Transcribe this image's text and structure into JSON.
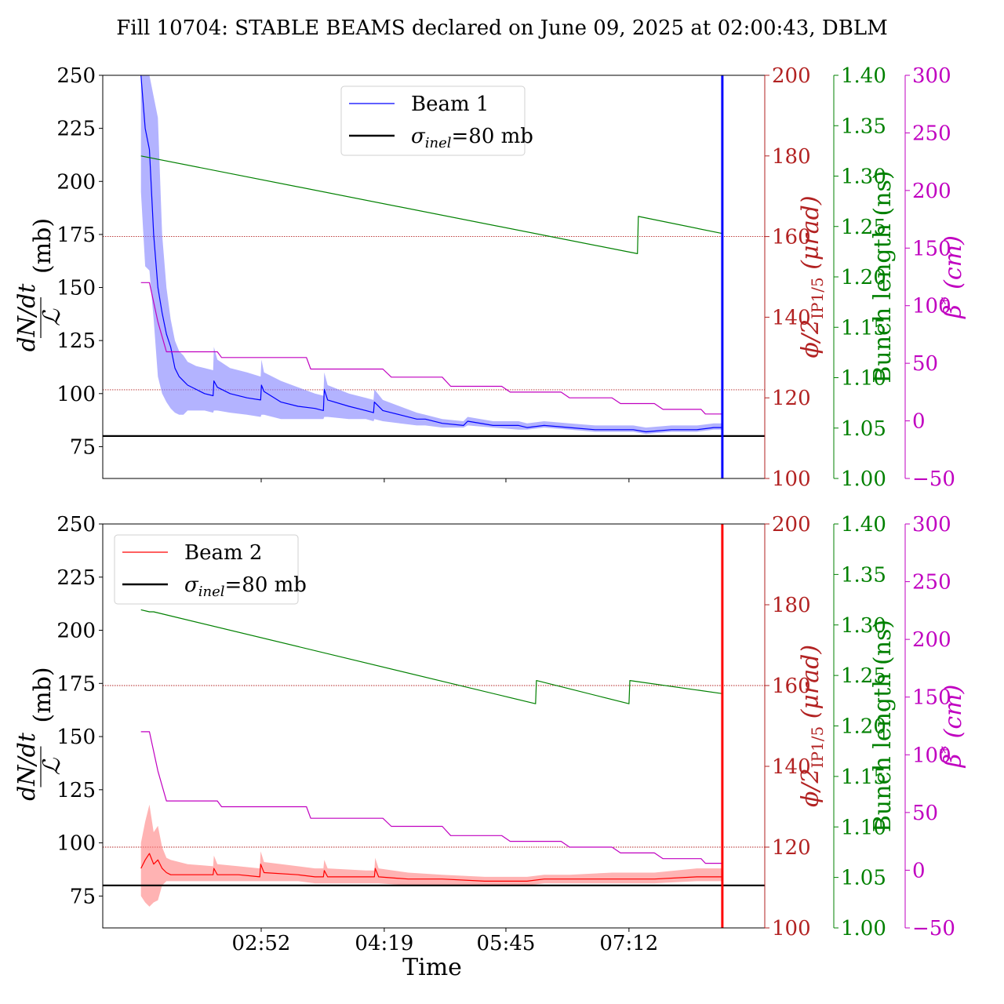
{
  "chart_data": [
    {
      "type": "line",
      "panel": "top",
      "title": "Fill 10704: STABLE BEAMS declared on June 09, 2025 at 02:00:43, DBLM",
      "ylabel": "dN/dt / ℒ (mb)",
      "ylabel_num": "dN/dt",
      "ylabel_den": "ℒ",
      "ylabel_unit": "(mb)",
      "ylim": [
        60,
        250
      ],
      "yticks": [
        75,
        100,
        125,
        150,
        175,
        200,
        225,
        250
      ],
      "xlim_hours": [
        1.0,
        8.8
      ],
      "xticks": [
        2.8667,
        4.3167,
        5.75,
        7.2
      ],
      "xticklabels": [],
      "right_axes": [
        {
          "name": "crossing",
          "label": "ϕ/2IP1/5 (μrad)",
          "label_main": "ϕ/2",
          "label_sub": "IP1/5",
          "label_unit": " (μrad)",
          "color": "#b22222",
          "ylim": [
            100,
            200
          ],
          "ticks": [
            100,
            120,
            140,
            160,
            180,
            200
          ]
        },
        {
          "name": "bunch_length",
          "label": "Bunch length (ns)",
          "color": "#008000",
          "ylim": [
            1.0,
            1.4
          ],
          "ticks": [
            "1.00",
            "1.05",
            "1.10",
            "1.15",
            "1.20",
            "1.25",
            "1.30",
            "1.35",
            "1.40"
          ]
        },
        {
          "name": "beta_star",
          "label": "β* (cm)",
          "label_main": "β",
          "label_sup": "*",
          "label_unit": " (cm)",
          "color": "#c000c0",
          "ylim": [
            -50,
            300
          ],
          "ticks": [
            "−50",
            "0",
            "50",
            "100",
            "150",
            "200",
            "250",
            "300"
          ]
        }
      ],
      "legend": {
        "placement": "upper-center",
        "entries": [
          {
            "label": "Beam 1",
            "color": "#0000ff"
          },
          {
            "label": "σinel=80 mb",
            "label_main": "σ",
            "label_sub": "inel",
            "label_rest": "=80 mb",
            "color": "#000000"
          }
        ]
      },
      "reference_line_mb": 80,
      "crossing_angle_urad": 160,
      "secondary_dotted_level_urad": 122,
      "series": [
        {
          "name": "Beam 1",
          "color": "#0000ff",
          "band_color": "#8080ff",
          "x": [
            1.45,
            1.5,
            1.55,
            1.6,
            1.65,
            1.7,
            1.75,
            1.8,
            1.85,
            1.9,
            1.95,
            2.0,
            2.1,
            2.2,
            2.3,
            2.31,
            2.35,
            2.5,
            2.7,
            2.86,
            2.87,
            2.9,
            3.1,
            3.3,
            3.5,
            3.6,
            3.61,
            3.65,
            3.9,
            4.1,
            4.19,
            4.2,
            4.3,
            4.5,
            4.7,
            4.8,
            5.0,
            5.25,
            5.3,
            5.6,
            5.9,
            6.0,
            6.2,
            6.5,
            6.8,
            7.0,
            7.25,
            7.4,
            7.7,
            8.0,
            8.2,
            8.3
          ],
          "values": [
            250,
            225,
            215,
            175,
            150,
            138,
            128,
            122,
            112,
            108,
            106,
            104,
            102,
            100,
            99,
            106,
            103,
            100,
            98,
            97,
            104,
            101,
            96,
            94,
            93,
            92,
            102,
            97,
            94,
            92,
            91,
            96,
            92,
            90,
            88,
            88,
            86,
            85,
            87,
            85,
            85,
            84,
            85,
            84,
            83,
            83,
            83,
            82,
            83,
            83,
            84,
            84
          ],
          "band_upper": [
            250,
            250,
            250,
            240,
            230,
            175,
            150,
            135,
            125,
            120,
            118,
            115,
            113,
            112,
            111,
            122,
            116,
            112,
            110,
            108,
            116,
            110,
            106,
            103,
            100,
            99,
            110,
            104,
            100,
            98,
            97,
            102,
            97,
            94,
            91,
            90,
            88,
            87,
            89,
            87,
            87,
            86,
            87,
            86,
            85,
            85,
            85,
            84,
            85,
            85,
            86,
            86
          ],
          "band_lower": [
            195,
            160,
            158,
            135,
            108,
            100,
            96,
            93,
            91,
            90,
            90,
            92,
            92,
            92,
            91,
            92,
            92,
            91,
            90,
            89,
            90,
            90,
            88,
            88,
            88,
            88,
            89,
            89,
            88,
            88,
            87,
            88,
            87,
            86,
            85,
            85,
            84,
            84,
            85,
            84,
            83,
            83,
            84,
            83,
            82,
            82,
            82,
            81,
            82,
            82,
            83,
            83
          ]
        },
        {
          "name": "σinel=80 mb",
          "axis": "left",
          "color": "#000000",
          "x": [
            1.0,
            8.8
          ],
          "values": [
            80,
            80
          ]
        },
        {
          "name": "Bunch length",
          "axis": "bunch_length",
          "color": "#008000",
          "x": [
            1.45,
            7.3,
            7.31,
            8.3
          ],
          "values": [
            1.32,
            1.223,
            1.26,
            1.243
          ]
        },
        {
          "name": "β*",
          "axis": "beta_star",
          "color": "#c000c0",
          "step": true,
          "x": [
            1.45,
            1.55,
            1.65,
            1.75,
            2.35,
            2.4,
            3.4,
            3.45,
            4.3,
            4.4,
            5.0,
            5.1,
            5.7,
            5.8,
            6.4,
            6.5,
            7.0,
            7.1,
            7.5,
            7.6,
            8.05,
            8.1,
            8.3
          ],
          "values": [
            120,
            120,
            86,
            60,
            60,
            55,
            55,
            45,
            45,
            38,
            38,
            30,
            30,
            25,
            25,
            20,
            20,
            15,
            15,
            10,
            10,
            6,
            6
          ]
        },
        {
          "name": "Beam 1 dump spike",
          "color": "#0000ff",
          "x": [
            8.3,
            8.3
          ],
          "values": [
            60,
            250
          ]
        }
      ]
    },
    {
      "type": "line",
      "panel": "bottom",
      "ylabel": "dN/dt / ℒ (mb)",
      "ylabel_num": "dN/dt",
      "ylabel_den": "ℒ",
      "ylabel_unit": "(mb)",
      "xlabel": "Time",
      "ylim": [
        60,
        250
      ],
      "yticks": [
        75,
        100,
        125,
        150,
        175,
        200,
        225,
        250
      ],
      "xlim_hours": [
        1.0,
        8.8
      ],
      "xticks": [
        2.8667,
        4.3167,
        5.75,
        7.2
      ],
      "xticklabels": [
        "02:52",
        "04:19",
        "05:45",
        "07:12"
      ],
      "right_axes": [
        {
          "name": "crossing",
          "label": "ϕ/2IP1/5 (μrad)",
          "label_main": "ϕ/2",
          "label_sub": "IP1/5",
          "label_unit": " (μrad)",
          "color": "#b22222",
          "ylim": [
            100,
            200
          ],
          "ticks": [
            100,
            120,
            140,
            160,
            180,
            200
          ]
        },
        {
          "name": "bunch_length",
          "label": "Bunch length (ns)",
          "color": "#008000",
          "ylim": [
            1.0,
            1.4
          ],
          "ticks": [
            "1.00",
            "1.05",
            "1.10",
            "1.15",
            "1.20",
            "1.25",
            "1.30",
            "1.35",
            "1.40"
          ]
        },
        {
          "name": "beta_star",
          "label": "β* (cm)",
          "label_main": "β",
          "label_sup": "*",
          "label_unit": " (cm)",
          "color": "#c000c0",
          "ylim": [
            -50,
            300
          ],
          "ticks": [
            "−50",
            "0",
            "50",
            "100",
            "150",
            "200",
            "250",
            "300"
          ]
        }
      ],
      "legend": {
        "placement": "upper-left",
        "entries": [
          {
            "label": "Beam 2",
            "color": "#ff0000"
          },
          {
            "label": "σinel=80 mb",
            "label_main": "σ",
            "label_sub": "inel",
            "label_rest": "=80 mb",
            "color": "#000000"
          }
        ]
      },
      "reference_line_mb": 80,
      "crossing_angle_urad": 160,
      "secondary_dotted_level_urad": 120,
      "series": [
        {
          "name": "Beam 2",
          "color": "#ff0000",
          "band_color": "#ff8080",
          "x": [
            1.45,
            1.5,
            1.55,
            1.6,
            1.65,
            1.7,
            1.75,
            1.8,
            1.9,
            2.0,
            2.3,
            2.31,
            2.35,
            2.6,
            2.85,
            2.86,
            2.9,
            3.3,
            3.5,
            3.6,
            3.61,
            3.65,
            4.1,
            4.2,
            4.21,
            4.25,
            4.6,
            5.0,
            5.5,
            6.0,
            6.2,
            6.5,
            7.0,
            7.2,
            7.5,
            8.0,
            8.3
          ],
          "values": [
            88,
            92,
            95,
            90,
            92,
            88,
            86,
            85,
            85,
            85,
            85,
            88,
            85,
            85,
            84,
            90,
            86,
            85,
            84,
            84,
            87,
            84,
            84,
            84,
            88,
            84,
            83,
            83,
            82,
            82,
            83,
            83,
            83,
            83,
            83,
            84,
            84
          ],
          "band_upper": [
            100,
            110,
            118,
            105,
            108,
            98,
            93,
            92,
            91,
            90,
            89,
            94,
            90,
            89,
            88,
            96,
            91,
            89,
            88,
            88,
            92,
            88,
            87,
            87,
            93,
            88,
            86,
            85,
            84,
            84,
            85,
            85,
            86,
            86,
            86,
            88,
            88
          ],
          "band_lower": [
            75,
            72,
            70,
            72,
            73,
            80,
            82,
            82,
            82,
            82,
            82,
            82,
            82,
            82,
            82,
            82,
            82,
            82,
            81,
            81,
            81,
            81,
            81,
            81,
            81,
            81,
            80,
            80,
            80,
            80,
            81,
            81,
            81,
            81,
            81,
            82,
            82
          ]
        },
        {
          "name": "σinel=80 mb",
          "axis": "left",
          "color": "#000000",
          "x": [
            1.0,
            8.8
          ],
          "values": [
            80,
            80
          ]
        },
        {
          "name": "Bunch length",
          "axis": "bunch_length",
          "color": "#008000",
          "x": [
            1.45,
            1.55,
            1.6,
            6.1,
            6.11,
            7.2,
            7.21,
            8.3
          ],
          "values": [
            1.315,
            1.313,
            1.313,
            1.222,
            1.245,
            1.222,
            1.245,
            1.232
          ]
        },
        {
          "name": "β*",
          "axis": "beta_star",
          "color": "#c000c0",
          "step": true,
          "x": [
            1.45,
            1.55,
            1.65,
            1.75,
            2.35,
            2.4,
            3.4,
            3.45,
            4.3,
            4.4,
            5.0,
            5.1,
            5.7,
            5.8,
            6.4,
            6.5,
            7.0,
            7.1,
            7.5,
            7.6,
            8.05,
            8.1,
            8.3
          ],
          "values": [
            120,
            120,
            86,
            60,
            60,
            55,
            55,
            45,
            45,
            38,
            38,
            30,
            30,
            25,
            25,
            20,
            20,
            15,
            15,
            10,
            10,
            6,
            6
          ]
        },
        {
          "name": "Beam 2 dump spike",
          "color": "#ff0000",
          "x": [
            8.3,
            8.3
          ],
          "values": [
            60,
            250
          ]
        }
      ]
    }
  ]
}
